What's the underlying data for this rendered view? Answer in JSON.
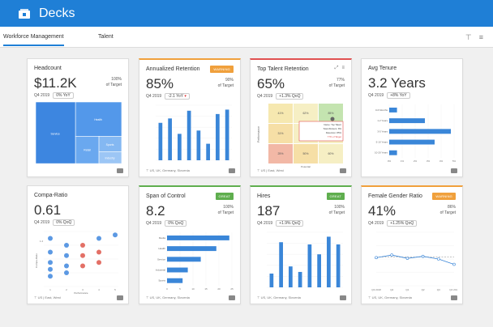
{
  "app": {
    "title": "Decks"
  },
  "tabs": [
    {
      "label": "Workforce Management"
    },
    {
      "label": "Talent"
    }
  ],
  "colors": {
    "accent": "#1f7fd6",
    "bar": "#3a86d8",
    "warning": "#f0a03c",
    "great": "#5fae4e",
    "alert": "#e05050"
  },
  "cards": {
    "headcount": {
      "title": "Headcount",
      "value": "$11.2K",
      "target_pct": "100%",
      "target_label": "of Target",
      "period": "Q4 2019",
      "delta": "0% YoY",
      "treemap": [
        {
          "label": "Service"
        },
        {
          "label": "Health"
        },
        {
          "label": "Retail"
        },
        {
          "label": "Sports"
        },
        {
          "label": "Industry"
        }
      ]
    },
    "retention": {
      "title": "Annualized Retention",
      "badge": "WARNING",
      "value": "85%",
      "target_pct": "90%",
      "target_label": "of Target",
      "period": "Q4 2019",
      "delta": "-2.1 YoY",
      "chart_data": {
        "type": "bar",
        "values": [
          68,
          76,
          48,
          90,
          54,
          30,
          84,
          92
        ],
        "ylim": [
          0,
          100
        ]
      }
    },
    "top_talent": {
      "title": "Top Talent Retention",
      "value": "65%",
      "target_pct": "77%",
      "target_label": "of Target",
      "period": "Q4 2019",
      "delta": "+1.3% QoQ",
      "y_label": "Performance",
      "x_label": "Potential",
      "grid": [
        [
          "41%",
          "62%",
          "85%"
        ],
        [
          "31%",
          "",
          ""
        ],
        [
          "25%",
          "50%",
          "60%"
        ]
      ],
      "tooltip": {
        "line1": "Name: Top Talent",
        "line2": "Total Workers: 8%",
        "line3": "Retention: 85%",
        "line4": "77% of Target"
      },
      "footer": "US | East, West"
    },
    "tenure": {
      "title": "Avg Tenure",
      "value": "3.2 Years",
      "period": "Q4 2019",
      "delta": "+8% YoY",
      "chart_data": {
        "type": "bar",
        "categories": [
          "0-6 Months",
          "1-2 Years",
          "3-5 Years",
          "5-10 Years",
          "10-20 Years"
        ],
        "values": [
          12,
          55,
          95,
          70,
          12
        ],
        "ticks": [
          "0%",
          "1%",
          "2%",
          "3%",
          "4%",
          "5%"
        ]
      }
    },
    "compa": {
      "title": "Compa-Ratio",
      "value": "0.61",
      "period": "Q4 2019",
      "delta": "0% QoQ",
      "y_label": "Compa-Ratio",
      "x_label": "Performance",
      "footer": "US | East, West",
      "chart_data": {
        "type": "scatter",
        "series": [
          {
            "color": "#4a8ee0",
            "points": [
              [
                1,
                1.4
              ],
              [
                1,
                1.0
              ],
              [
                1,
                0.7
              ],
              [
                1,
                0.5
              ],
              [
                1,
                0.3
              ],
              [
                2,
                1.2
              ],
              [
                2,
                0.9
              ],
              [
                2,
                0.6
              ],
              [
                2,
                0.4
              ],
              [
                4,
                1.4
              ],
              [
                5,
                1.5
              ]
            ]
          },
          {
            "color": "#e06055",
            "points": [
              [
                3,
                1.2
              ],
              [
                3,
                0.9
              ],
              [
                3,
                0.6
              ],
              [
                4,
                1.0
              ],
              [
                4,
                0.7
              ]
            ]
          }
        ],
        "x_ticks": [
          "1",
          "2",
          "3",
          "4",
          "5"
        ],
        "y_tick": "1.4"
      }
    },
    "span": {
      "title": "Span of Control",
      "badge": "GREAT",
      "value": "8.2",
      "target_pct": "100%",
      "target_label": "of Target",
      "period": "Q4 2019",
      "delta": "0% QoQ",
      "chart_data": {
        "type": "bar",
        "categories": [
          "Media",
          "Health",
          "Service",
          "Industrial",
          "Sports"
        ],
        "values": [
          24,
          19,
          13,
          8,
          6
        ],
        "ticks": [
          "0",
          "5",
          "10",
          "15",
          "20",
          "25"
        ]
      },
      "footer": "US, UK, Germany, Slovenia"
    },
    "hires": {
      "title": "Hires",
      "badge": "GREAT",
      "value": "187",
      "target_pct": "100%",
      "target_label": "of Target",
      "period": "Q4 2019",
      "delta": "+1.9% QoQ",
      "chart_data": {
        "type": "bar",
        "values": [
          25,
          82,
          38,
          28,
          78,
          60,
          92,
          78
        ],
        "ylim": [
          0,
          100
        ]
      },
      "footer": "US, UK, Germany, Slovenia"
    },
    "gender": {
      "title": "Female Gender Ratio",
      "badge": "WARNING",
      "value": "41%",
      "target_pct": "86%",
      "target_label": "of Target",
      "period": "Q4 2019",
      "delta": "+1.25% QoQ",
      "chart_data": {
        "type": "line",
        "categories": [
          "Q3 2018",
          "Q4",
          "Q1",
          "Q2",
          "Q3",
          "Q4 2019"
        ],
        "values": [
          42,
          46,
          41,
          44,
          40,
          32
        ]
      },
      "footer": "US, UK, Germany, Slovenia"
    },
    "retention_footer": "US, UK, Germany, Slovenia"
  }
}
